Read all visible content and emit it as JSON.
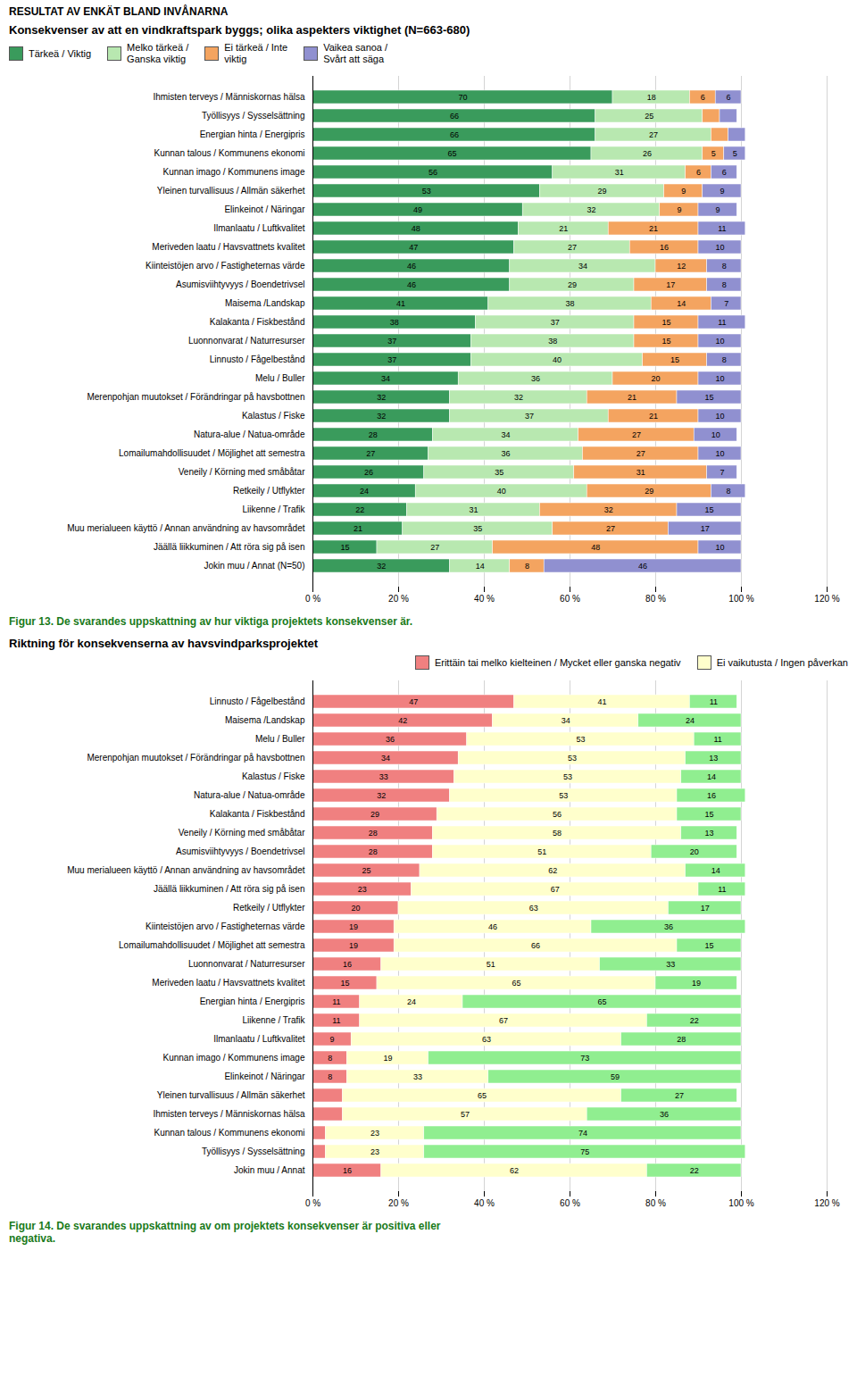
{
  "title": "RESULTAT AV ENKÄT BLAND INVÅNARNA",
  "chart_data": [
    {
      "type": "bar",
      "orientation": "horizontal",
      "stacked": true,
      "grid": true,
      "legend": "upper left",
      "data_labels": true,
      "title": "Konsekvenser av att en vindkraftspark byggs; olika aspekters viktighet (N=663-680)",
      "caption": "Figur 13. De svarandes uppskattning av hur viktiga projektets konsekvenser är.",
      "categories": [
        "Ihmisten terveys / Människornas hälsa",
        "Työllisyys / Sysselsättning",
        "Energian hinta / Energipris",
        "Kunnan talous / Kommunens ekonomi",
        "Kunnan imago / Kommunens image",
        "Yleinen turvallisuus / Allmän säkerhet",
        "Elinkeinot / Näringar",
        "Ilmanlaatu / Luftkvalitet",
        "Meriveden laatu / Havsvattnets kvalitet",
        "Kiinteistöjen arvo / Fastigheternas värde",
        "Asumisviihtyvyys / Boendetrivsel",
        "Maisema /Landskap",
        "Kalakanta / Fiskbestånd",
        "Luonnonvarat / Naturresurser",
        "Linnusto / Fågelbestånd",
        "Melu / Buller",
        "Merenpohjan muutokset / Förändringar på havsbottnen",
        "Kalastus / Fiske",
        "Natura-alue / Natua-område",
        "Lomailumahdollisuudet / Möjlighet att semestra",
        "Veneily / Körning med småbåtar",
        "Retkeily / Utflykter",
        "Liikenne / Trafik",
        "Muu merialueen käyttö / Annan användning av havsområdet",
        "Jäällä liikkuminen / Att röra sig på isen",
        "Jokin muu / Annat (N=50)"
      ],
      "xlim": [
        0,
        120
      ],
      "xticks": [
        {
          "value": 0,
          "label": "0 %"
        },
        {
          "value": 20,
          "label": "20 %"
        },
        {
          "value": 40,
          "label": "40 %"
        },
        {
          "value": 60,
          "label": "60 %"
        },
        {
          "value": 80,
          "label": "80 %"
        },
        {
          "value": 100,
          "label": "100 %"
        },
        {
          "value": 120,
          "label": "120 %"
        }
      ],
      "series": [
        {
          "name": "Tärkeä / Viktig",
          "color": "#3a9b5c",
          "values": [
            70,
            66,
            66,
            65,
            56,
            53,
            49,
            48,
            47,
            46,
            46,
            41,
            38,
            37,
            37,
            34,
            32,
            32,
            28,
            27,
            26,
            24,
            22,
            21,
            15,
            32
          ],
          "value_labels": [
            "70",
            "66",
            "66",
            "65",
            "56",
            "53",
            "49",
            "48",
            "47",
            "46",
            "46",
            "41",
            "38",
            "37",
            "37",
            "34",
            "32",
            "32",
            "28",
            "27",
            "26",
            "24",
            "22",
            "21",
            "15",
            "32"
          ]
        },
        {
          "name": "Melko tärkeä /\nGanska viktig",
          "color": "#b8e8b0",
          "values": [
            18,
            25,
            27,
            26,
            31,
            29,
            32,
            21,
            27,
            34,
            29,
            38,
            37,
            38,
            40,
            36,
            32,
            37,
            34,
            36,
            35,
            40,
            31,
            35,
            27,
            14
          ],
          "value_labels": [
            "18",
            "25",
            "27",
            "26",
            "31",
            "29",
            "32",
            "21",
            "27",
            "34",
            "29",
            "38",
            "37",
            "38",
            "40",
            "36",
            "32",
            "37",
            "34",
            "36",
            "35",
            "40",
            "31",
            "35",
            "27",
            "14"
          ]
        },
        {
          "name": "Ei tärkeä / Inte\nviktig",
          "color": "#f4a460",
          "values": [
            6,
            4,
            4,
            5,
            6,
            9,
            9,
            21,
            16,
            12,
            17,
            14,
            15,
            15,
            15,
            20,
            21,
            21,
            27,
            27,
            31,
            29,
            32,
            27,
            48,
            8
          ],
          "value_labels": [
            "6",
            null,
            null,
            "5",
            "6",
            "9",
            "9",
            "21",
            "16",
            "12",
            "17",
            "14",
            "15",
            "15",
            "15",
            "20",
            "21",
            "21",
            "27",
            "27",
            "31",
            "29",
            "32",
            "27",
            "48",
            "8"
          ]
        },
        {
          "name": "Vaikea sanoa /\nSvårt att säga",
          "color": "#9090d0",
          "values": [
            6,
            4,
            4,
            5,
            6,
            9,
            9,
            11,
            10,
            8,
            8,
            7,
            11,
            10,
            8,
            10,
            15,
            10,
            10,
            10,
            7,
            8,
            15,
            17,
            10,
            46
          ],
          "value_labels": [
            "6",
            null,
            null,
            "5",
            "6",
            "9",
            "9",
            "11",
            "10",
            "8",
            "8",
            "7",
            "11",
            "10",
            "8",
            "10",
            "15",
            "10",
            "10",
            "10",
            "7",
            "8",
            "15",
            "17",
            "10",
            "46"
          ]
        }
      ]
    },
    {
      "type": "bar",
      "orientation": "horizontal",
      "stacked": true,
      "grid": true,
      "legend": "upper right",
      "data_labels": true,
      "title": "Riktning för konsekvenserna av havsvindparksprojektet",
      "caption": "Figur 14. De svarandes uppskattning av om projektets konsekvenser är positiva eller\nnegativa.",
      "categories": [
        "Linnusto / Fågelbestånd",
        "Maisema /Landskap",
        "Melu / Buller",
        "Merenpohjan muutokset / Förändringar på havsbottnen",
        "Kalastus / Fiske",
        "Natura-alue / Natua-område",
        "Kalakanta / Fiskbestånd",
        "Veneily / Körning med småbåtar",
        "Asumisviihtyvyys / Boendetrivsel",
        "Muu merialueen käyttö / Annan användning av havsområdet",
        "Jäällä liikkuminen / Att röra sig på isen",
        "Retkeily / Utflykter",
        "Kiinteistöjen arvo / Fastigheternas värde",
        "Lomailumahdollisuudet / Möjlighet att semestra",
        "Luonnonvarat / Naturresurser",
        "Meriveden laatu / Havsvattnets kvalitet",
        "Energian hinta / Energipris",
        "Liikenne / Trafik",
        "Ilmanlaatu / Luftkvalitet",
        "Kunnan imago / Kommunens image",
        "Elinkeinot / Näringar",
        "Yleinen turvallisuus / Allmän säkerhet",
        "Ihmisten terveys / Människornas hälsa",
        "Kunnan talous / Kommunens ekonomi",
        "Työllisyys / Sysselsättning",
        "Jokin muu / Annat"
      ],
      "xlim": [
        0,
        120
      ],
      "xticks": [
        {
          "value": 0,
          "label": "0 %"
        },
        {
          "value": 20,
          "label": "20 %"
        },
        {
          "value": 40,
          "label": "40 %"
        },
        {
          "value": 60,
          "label": "60 %"
        },
        {
          "value": 80,
          "label": "80 %"
        },
        {
          "value": 100,
          "label": "100 %"
        },
        {
          "value": 120,
          "label": "120 %"
        }
      ],
      "series": [
        {
          "name": "Erittäin tai melko kielteinen / Mycket eller ganska negativ",
          "color": "#f08080",
          "values": [
            47,
            42,
            36,
            34,
            33,
            32,
            29,
            28,
            28,
            25,
            23,
            20,
            19,
            19,
            16,
            15,
            11,
            11,
            9,
            8,
            8,
            7,
            7,
            3,
            3,
            16
          ],
          "value_labels": [
            "47",
            "42",
            "36",
            "34",
            "33",
            "32",
            "29",
            "28",
            "28",
            "25",
            "23",
            "20",
            "19",
            "19",
            "16",
            "15",
            "11",
            "11",
            "9",
            "8",
            "8",
            null,
            null,
            null,
            null,
            "16"
          ]
        },
        {
          "name": "Ei vaikutusta / Ingen påverkan",
          "color": "#ffffcc",
          "values": [
            41,
            34,
            53,
            53,
            53,
            53,
            56,
            58,
            51,
            62,
            67,
            63,
            46,
            66,
            51,
            65,
            24,
            67,
            63,
            19,
            33,
            65,
            57,
            23,
            23,
            62
          ],
          "value_labels": [
            "41",
            "34",
            "53",
            "53",
            "53",
            "53",
            "56",
            "58",
            "51",
            "62",
            "67",
            "63",
            "46",
            "66",
            "51",
            "65",
            "24",
            "67",
            "63",
            "19",
            "33",
            "65",
            "57",
            "23",
            "23",
            "62"
          ]
        },
        {
          "name": null,
          "color": "#90ee90",
          "values": [
            11,
            24,
            11,
            13,
            14,
            16,
            15,
            13,
            20,
            14,
            11,
            17,
            36,
            15,
            33,
            19,
            65,
            22,
            28,
            73,
            59,
            27,
            36,
            74,
            75,
            22
          ],
          "value_labels": [
            "11",
            "24",
            "11",
            "13",
            "14",
            "16",
            "15",
            "13",
            "20",
            "14",
            "11",
            "17",
            "36",
            "15",
            "33",
            "19",
            "65",
            "22",
            "28",
            "73",
            "59",
            "27",
            "36",
            "74",
            "75",
            "22"
          ]
        }
      ]
    }
  ]
}
